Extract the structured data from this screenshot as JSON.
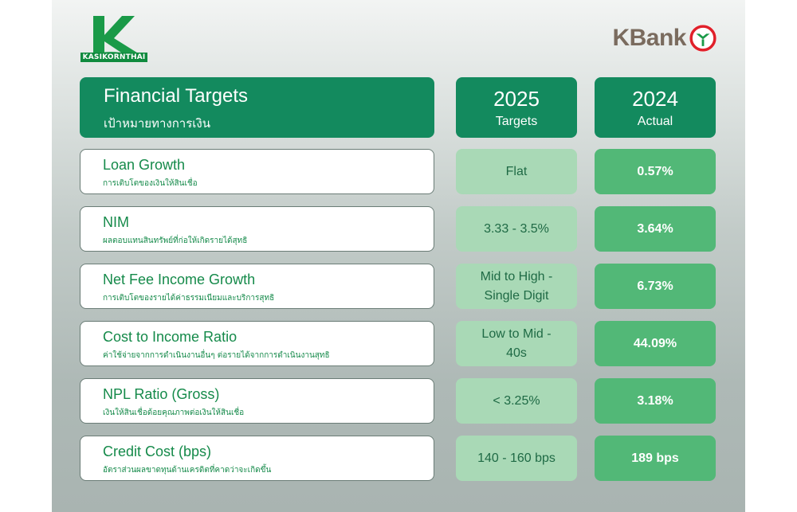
{
  "brand": {
    "left_logo_text": "KASIKORNTHAI",
    "right_logo_text": "KBank",
    "green": "#138a5e",
    "red": "#e0202a"
  },
  "header": {
    "title": "Financial Targets",
    "subtitle": "เป้าหมายทางการเงิน",
    "col_targets_year": "2025",
    "col_targets_label": "Targets",
    "col_actual_year": "2024",
    "col_actual_label": "Actual"
  },
  "rows": [
    {
      "title": "Loan Growth",
      "subtitle": "การเติบโตของเงินให้สินเชื่อ",
      "target": "Flat",
      "actual": "0.57%"
    },
    {
      "title": "NIM",
      "subtitle": "ผลตอบแทนสินทรัพย์ที่ก่อให้เกิดรายได้สุทธิ",
      "target": "3.33 - 3.5%",
      "actual": "3.64%"
    },
    {
      "title": "Net Fee Income Growth",
      "subtitle": "การเติบโตของรายได้ค่าธรรมเนียมและบริการสุทธิ",
      "target": "Mid to High - Single Digit",
      "actual": "6.73%"
    },
    {
      "title": "Cost to Income Ratio",
      "subtitle": "ค่าใช้จ่ายจากการดำเนินงานอื่นๆ ต่อรายได้จากการดำเนินงานสุทธิ",
      "target": "Low to Mid - 40s",
      "actual": "44.09%"
    },
    {
      "title": "NPL Ratio (Gross)",
      "subtitle": "เงินให้สินเชื่อด้อยคุณภาพต่อเงินให้สินเชื่อ",
      "target": "< 3.25%",
      "actual": "3.18%"
    },
    {
      "title": "Credit Cost (bps)",
      "subtitle": "อัตราส่วนผลขาดทุนด้านเครดิตที่คาดว่าจะเกิดขึ้น",
      "target": "140 - 160 bps",
      "actual": "189 bps"
    }
  ]
}
